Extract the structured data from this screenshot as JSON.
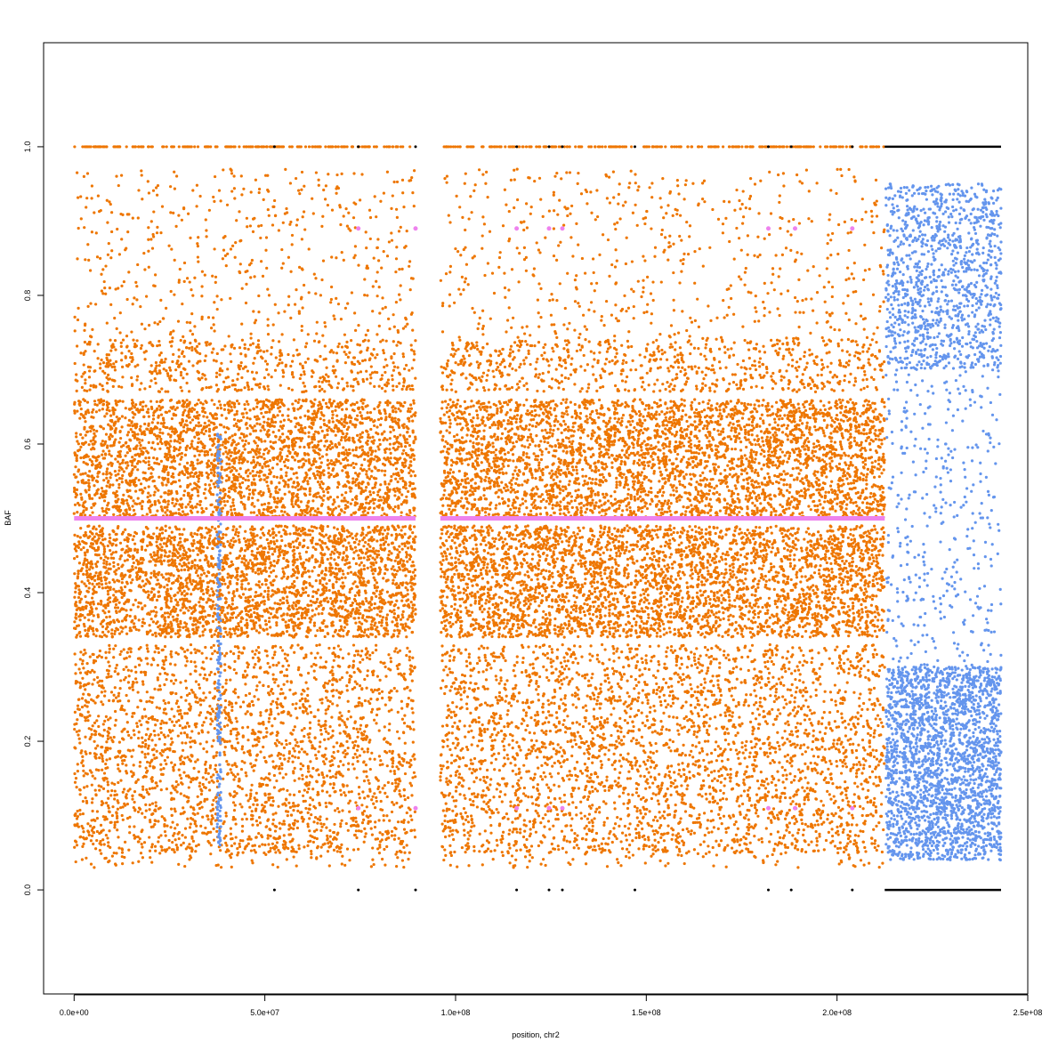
{
  "chart_data": {
    "type": "scatter",
    "title": "",
    "xlabel": "position, chr2",
    "ylabel": "BAF",
    "xlim": [
      -8000000,
      250000000
    ],
    "ylim": [
      -0.14,
      1.14
    ],
    "x_ticks": [
      0,
      50000000,
      100000000,
      150000000,
      200000000,
      250000000
    ],
    "x_tick_labels": [
      "0.0e+00",
      "5.0e+07",
      "1.0e+08",
      "1.5e+08",
      "2.0e+08",
      "2.5e+08"
    ],
    "y_ticks": [
      0.0,
      0.2,
      0.4,
      0.6,
      0.8,
      1.0
    ],
    "y_tick_labels": [
      "0.0",
      "0.2",
      "0.4",
      "0.6",
      "0.8",
      "1.0"
    ],
    "grid": false,
    "legend": "none",
    "colors": {
      "orange": "#ee7600",
      "blue": "#6495ed",
      "violet": "#ee82ee",
      "black": "#000000"
    },
    "series": [
      {
        "color_key": "orange",
        "segments": [
          [
            0,
            89500000
          ],
          [
            96000000,
            212500000
          ]
        ],
        "bands": [
          {
            "ymin": 0.5,
            "ymax": 0.66,
            "fraction": 0.3
          },
          {
            "ymin": 0.34,
            "ymax": 0.49,
            "fraction": 0.3
          },
          {
            "ymin": 0.67,
            "ymax": 0.74,
            "fraction": 0.06
          },
          {
            "ymin": 0.26,
            "ymax": 0.33,
            "fraction": 0.06
          },
          {
            "ymin": 0.05,
            "ymax": 0.26,
            "fraction": 0.2
          },
          {
            "ymin": 0.74,
            "ymax": 0.97,
            "fraction": 0.05
          },
          {
            "ymin": 0.03,
            "ymax": 0.06,
            "fraction": 0.01
          },
          {
            "ymin": 1.0,
            "ymax": 1.0,
            "fraction": 0.02
          }
        ],
        "approx_point_count": 22000
      },
      {
        "color_key": "blue",
        "segments": [
          [
            212800000,
            243000000
          ]
        ],
        "bands": [
          {
            "ymin": 0.04,
            "ymax": 0.3,
            "fraction": 0.6
          },
          {
            "ymin": 0.7,
            "ymax": 0.95,
            "fraction": 0.3
          },
          {
            "ymin": 0.3,
            "ymax": 0.7,
            "fraction": 0.1
          }
        ],
        "approx_point_count": 3800
      },
      {
        "color_key": "blue",
        "segments": [
          [
            37500000,
            38500000
          ]
        ],
        "bands": [
          {
            "ymin": 0.06,
            "ymax": 0.62,
            "fraction": 1.0
          }
        ],
        "approx_point_count": 220
      },
      {
        "color_key": "violet",
        "segments": [
          [
            0,
            89500000
          ],
          [
            96000000,
            212500000
          ]
        ],
        "y": 0.5,
        "outliers_x": [
          74500000,
          89500000,
          116000000,
          124500000,
          128000000,
          182000000,
          189000000,
          204000000
        ],
        "outliers_y": [
          0.89,
          0.11
        ]
      },
      {
        "color_key": "black",
        "segments": [
          [
            212500000,
            243000000
          ]
        ],
        "y": [
          0.0,
          1.0
        ],
        "outliers_x": [
          52500000,
          74500000,
          89500000,
          116000000,
          124500000,
          128000000,
          147000000,
          182000000,
          188000000,
          204000000
        ]
      }
    ]
  }
}
